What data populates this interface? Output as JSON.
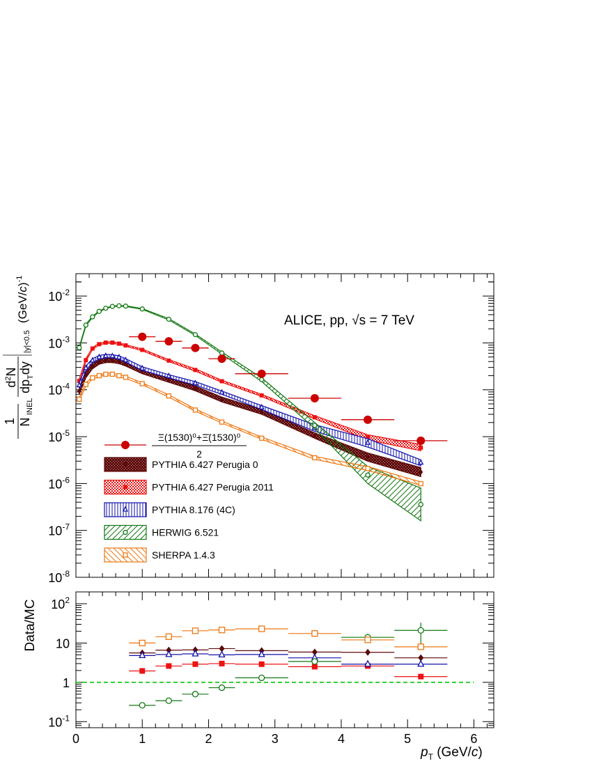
{
  "chart_data": [
    {
      "type": "scatter",
      "panel": "spectrum",
      "yscale": "log",
      "xlim": [
        0,
        6.3
      ],
      "ylim": [
        1e-08,
        0.03
      ],
      "x_ticks": [
        0,
        1,
        2,
        3,
        4,
        5,
        6
      ],
      "y_ticks": [
        {
          "value": 1e-08,
          "label": "10^-8"
        },
        {
          "value": 1e-07,
          "label": "10^-7"
        },
        {
          "value": 1e-06,
          "label": "10^-6"
        },
        {
          "value": 1e-05,
          "label": "10^-5"
        },
        {
          "value": 0.0001,
          "label": "10^-4"
        },
        {
          "value": 0.001,
          "label": "10^-3"
        },
        {
          "value": 0.01,
          "label": "10^-2"
        }
      ],
      "ylabel": "1/N_INEL d²N/dp_T dy |y|<0.5 (GeV/c)^-1",
      "annotation": "ALICE, pp, √s = 7 TeV",
      "data": {
        "name": "(Ξ(1530)⁰ + Ξ̄(1530)⁰)/2",
        "color": "#cc0000",
        "points": [
          {
            "x": 1.0,
            "xlo": 0.8,
            "xhi": 1.2,
            "y": 0.00135
          },
          {
            "x": 1.4,
            "xlo": 1.2,
            "xhi": 1.6,
            "y": 0.00108
          },
          {
            "x": 1.8,
            "xlo": 1.6,
            "xhi": 2.0,
            "y": 0.00078
          },
          {
            "x": 2.2,
            "xlo": 2.0,
            "xhi": 2.4,
            "y": 0.00046
          },
          {
            "x": 2.8,
            "xlo": 2.4,
            "xhi": 3.2,
            "y": 0.00022
          },
          {
            "x": 3.6,
            "xlo": 3.2,
            "xhi": 4.0,
            "y": 6.6e-05
          },
          {
            "x": 4.4,
            "xlo": 4.0,
            "xhi": 4.8,
            "y": 2.3e-05
          },
          {
            "x": 5.2,
            "xlo": 4.8,
            "xhi": 5.6,
            "y": 8.2e-06
          }
        ]
      },
      "models": [
        {
          "name": "PYTHIA 6.427 Perugia 0",
          "marker": "diamond",
          "fill": "dense",
          "color": "#5c0a0a",
          "x": [
            0.05,
            0.15,
            0.25,
            0.35,
            0.45,
            0.55,
            0.65,
            0.75,
            1.0,
            1.4,
            1.8,
            2.2,
            2.8,
            3.6,
            4.4,
            5.2
          ],
          "lo": [
            8e-05,
            0.00018,
            0.00028,
            0.00035,
            0.00038,
            0.00038,
            0.00036,
            0.00032,
            0.00022,
            0.000145,
            9.5e-05,
            5.5e-05,
            3e-05,
            9.2e-06,
            3e-06,
            1.4e-06
          ],
          "hi": [
            0.00011,
            0.00024,
            0.00036,
            0.00043,
            0.00046,
            0.00046,
            0.00044,
            0.0004,
            0.00028,
            0.00018,
            0.00012,
            7e-05,
            3.8e-05,
            1.2e-05,
            4.5e-06,
            2.2e-06
          ]
        },
        {
          "name": "PYTHIA 6.427 Perugia 2011",
          "marker": "square-filled",
          "fill": "dotted",
          "color": "#ee1111",
          "x": [
            0.05,
            0.15,
            0.25,
            0.35,
            0.45,
            0.55,
            0.65,
            0.75,
            1.0,
            1.4,
            1.8,
            2.2,
            2.8,
            3.6,
            4.4,
            5.2
          ],
          "lo": [
            0.00014,
            0.0004,
            0.00072,
            0.0009,
            0.00098,
            0.00098,
            0.00093,
            0.00085,
            0.00068,
            0.0004,
            0.00025,
            0.000145,
            7.2e-05,
            2.4e-05,
            8.5e-06,
            5e-06
          ],
          "hi": [
            0.00017,
            0.00046,
            0.0008,
            0.00098,
            0.00105,
            0.00105,
            0.001,
            0.00092,
            0.00074,
            0.00044,
            0.00028,
            0.00016,
            8e-05,
            2.8e-05,
            1.1e-05,
            6.8e-06
          ]
        },
        {
          "name": "PYTHIA 8.176 (4C)",
          "marker": "triangle-open",
          "fill": "vertical",
          "color": "#1010aa",
          "x": [
            0.05,
            0.15,
            0.25,
            0.35,
            0.45,
            0.55,
            0.65,
            0.75,
            1.0,
            1.4,
            1.8,
            2.2,
            2.8,
            3.6,
            4.4,
            5.2
          ],
          "lo": [
            0.00011,
            0.00026,
            0.00038,
            0.00045,
            0.00048,
            0.00048,
            0.00045,
            0.00039,
            0.00026,
            0.00018,
            0.000125,
            8e-05,
            3.8e-05,
            1.3e-05,
            6e-06,
            2.4e-06
          ],
          "hi": [
            0.00014,
            0.00032,
            0.00046,
            0.00054,
            0.00057,
            0.00056,
            0.00053,
            0.00046,
            0.00031,
            0.00021,
            0.00015,
            9.4e-05,
            4.6e-05,
            1.8e-05,
            9e-06,
            3.2e-06
          ]
        },
        {
          "name": "HERWIG 6.521",
          "marker": "circle-open",
          "fill": "diagonal",
          "color": "#117711",
          "x": [
            0.05,
            0.15,
            0.25,
            0.35,
            0.45,
            0.55,
            0.65,
            0.75,
            1.0,
            1.4,
            1.8,
            2.2,
            2.8,
            3.6,
            4.4,
            5.2
          ],
          "lo": [
            0.00076,
            0.0023,
            0.0035,
            0.0046,
            0.0054,
            0.0059,
            0.0061,
            0.006,
            0.0052,
            0.0031,
            0.00145,
            0.00058,
            0.00015,
            1.5e-05,
            1e-06,
            1.6e-07
          ],
          "hi": [
            0.00082,
            0.0025,
            0.0037,
            0.0048,
            0.0056,
            0.0061,
            0.0063,
            0.0062,
            0.0054,
            0.0033,
            0.00155,
            0.00064,
            0.00018,
            2e-05,
            2.3e-06,
            8e-07
          ]
        },
        {
          "name": "SHERPA 1.4.3",
          "marker": "square-open",
          "fill": "backdiag",
          "color": "#ee7711",
          "x": [
            0.05,
            0.15,
            0.25,
            0.35,
            0.45,
            0.55,
            0.65,
            0.75,
            1.0,
            1.4,
            1.8,
            2.2,
            2.8,
            3.6,
            4.4,
            5.2
          ],
          "lo": [
            5.8e-05,
            0.00012,
            0.00017,
            0.00019,
            0.000205,
            0.000205,
            0.00019,
            0.000175,
            0.000128,
            7e-05,
            3.5e-05,
            1.95e-05,
            8.8e-06,
            3.3e-06,
            1.9e-06,
            9.2e-07
          ],
          "hi": [
            6.8e-05,
            0.00014,
            0.00019,
            0.00021,
            0.000225,
            0.000225,
            0.00021,
            0.000195,
            0.000142,
            7.8e-05,
            3.9e-05,
            2.15e-05,
            9.8e-06,
            3.8e-06,
            2.3e-06,
            1.08e-06
          ]
        }
      ],
      "legend": {
        "placement": "bottom-left",
        "data_numerator": "Ξ(1530)⁰+Ξ̄(1530)⁰",
        "data_denominator": "2"
      }
    },
    {
      "type": "scatter",
      "panel": "ratio",
      "yscale": "log",
      "xlim": [
        0,
        6.3
      ],
      "ylim": [
        0.07,
        200
      ],
      "ylabel": "Data/MC",
      "xlabel": "p_T (GeV/c)",
      "y_ticks": [
        {
          "value": 0.1,
          "label": "10^-1"
        },
        {
          "value": 1,
          "label": "1"
        },
        {
          "value": 10,
          "label": "10"
        },
        {
          "value": 100,
          "label": "10^2"
        }
      ],
      "reference_line": 1,
      "series": [
        {
          "name": "PYTHIA 6.427 Perugia 0",
          "color": "#5c0a0a",
          "marker": "diamond",
          "points": [
            {
              "x": 1.0,
              "y": 5.6
            },
            {
              "x": 1.4,
              "y": 6.6
            },
            {
              "x": 1.8,
              "y": 6.7
            },
            {
              "x": 2.2,
              "y": 7.2
            },
            {
              "x": 2.8,
              "y": 6.4
            },
            {
              "x": 3.6,
              "y": 5.9
            },
            {
              "x": 4.4,
              "y": 5.8
            },
            {
              "x": 5.2,
              "y": 4.2
            }
          ]
        },
        {
          "name": "PYTHIA 6.427 Perugia 2011",
          "color": "#ee1111",
          "marker": "square-filled",
          "points": [
            {
              "x": 1.0,
              "y": 1.95
            },
            {
              "x": 1.4,
              "y": 2.6
            },
            {
              "x": 1.8,
              "y": 2.9
            },
            {
              "x": 2.2,
              "y": 3.0
            },
            {
              "x": 2.8,
              "y": 2.9
            },
            {
              "x": 3.6,
              "y": 2.5
            },
            {
              "x": 4.4,
              "y": 2.6
            },
            {
              "x": 5.2,
              "y": 1.4
            }
          ]
        },
        {
          "name": "PYTHIA 8.176 (4C)",
          "color": "#1010aa",
          "marker": "triangle-open",
          "points": [
            {
              "x": 1.0,
              "y": 4.8
            },
            {
              "x": 1.4,
              "y": 5.1
            },
            {
              "x": 1.8,
              "y": 5.3
            },
            {
              "x": 2.2,
              "y": 5.0
            },
            {
              "x": 2.8,
              "y": 5.1
            },
            {
              "x": 3.6,
              "y": 4.2
            },
            {
              "x": 4.4,
              "y": 2.9
            },
            {
              "x": 5.2,
              "y": 2.9
            }
          ]
        },
        {
          "name": "HERWIG 6.521",
          "color": "#117711",
          "marker": "circle-open",
          "points": [
            {
              "x": 1.0,
              "y": 0.26,
              "err": 0.02
            },
            {
              "x": 1.4,
              "y": 0.34,
              "err": 0.02
            },
            {
              "x": 1.8,
              "y": 0.5,
              "err": 0.03
            },
            {
              "x": 2.2,
              "y": 0.73,
              "err": 0.05
            },
            {
              "x": 2.8,
              "y": 1.3,
              "err": 0.1
            },
            {
              "x": 3.6,
              "y": 3.4,
              "err": 0.4
            },
            {
              "x": 4.4,
              "y": 14,
              "err": 3
            },
            {
              "x": 5.2,
              "y": 21,
              "err": 12
            }
          ]
        },
        {
          "name": "SHERPA 1.4.3",
          "color": "#ee7711",
          "marker": "square-open",
          "points": [
            {
              "x": 1.0,
              "y": 10
            },
            {
              "x": 1.4,
              "y": 14.5
            },
            {
              "x": 1.8,
              "y": 20.5
            },
            {
              "x": 2.2,
              "y": 21.5
            },
            {
              "x": 2.8,
              "y": 23
            },
            {
              "x": 3.6,
              "y": 17.5
            },
            {
              "x": 4.4,
              "y": 12
            },
            {
              "x": 5.2,
              "y": 8
            }
          ]
        }
      ]
    }
  ]
}
